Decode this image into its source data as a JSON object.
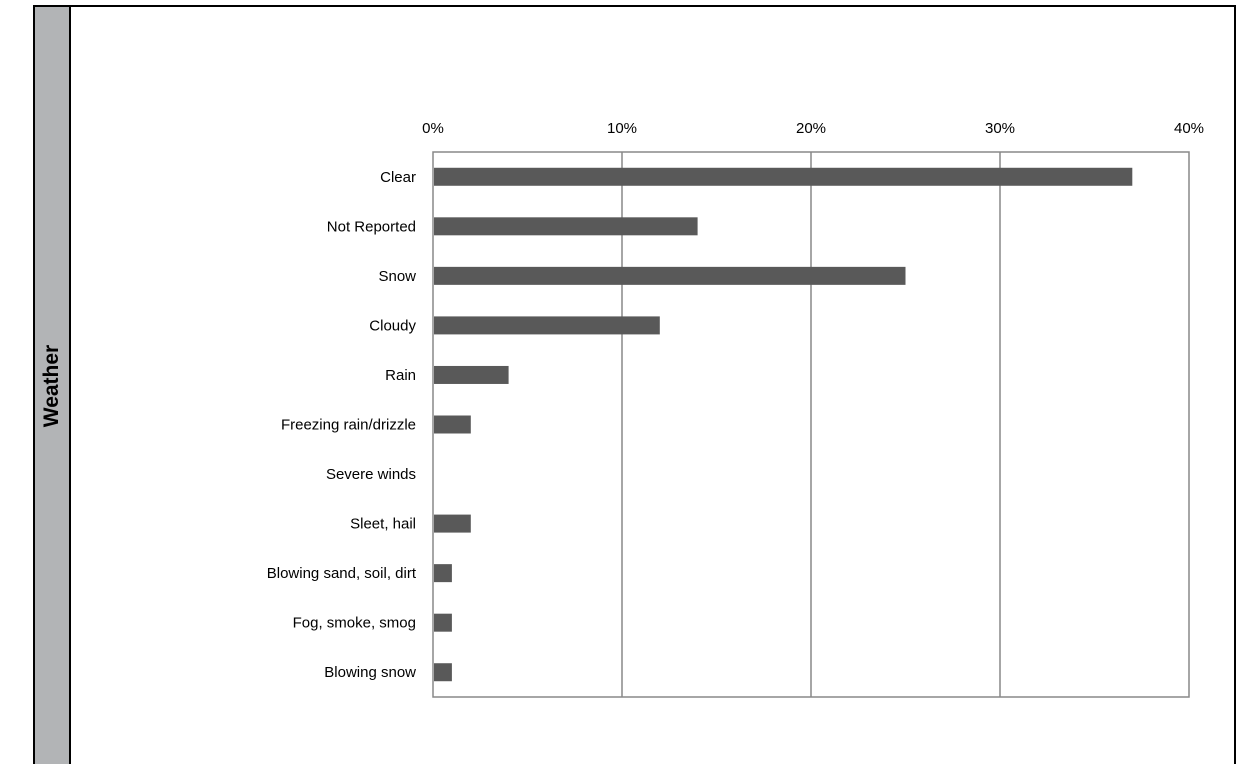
{
  "panel": {
    "label": "Weather"
  },
  "colors": {
    "bar": "#595959",
    "grid": "#888888",
    "panel": "#b2b4b6"
  },
  "chart_data": {
    "type": "bar",
    "orientation": "horizontal",
    "categories": [
      "Clear",
      "Not Reported",
      "Snow",
      "Cloudy",
      "Rain",
      "Freezing rain/drizzle",
      "Severe winds",
      "Sleet, hail",
      "Blowing sand, soil, dirt",
      "Fog, smoke, smog",
      "Blowing snow"
    ],
    "values": [
      37,
      14,
      25,
      12,
      4,
      2,
      0,
      2,
      1,
      1,
      1
    ],
    "xlim": [
      0,
      40
    ],
    "xticks": [
      0,
      10,
      20,
      30,
      40
    ],
    "xtick_labels": [
      "0%",
      "10%",
      "20%",
      "30%",
      "40%"
    ],
    "x_axis_position": "top",
    "grid": true
  }
}
